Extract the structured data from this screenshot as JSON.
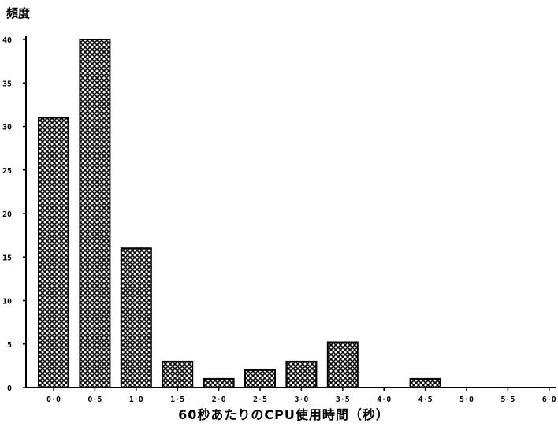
{
  "chart_data": {
    "type": "bar",
    "title": "",
    "ylabel": "頻度",
    "xlabel": "60秒あたりのCPU使用時間（秒）",
    "categories": [
      "0.0",
      "0.5",
      "1.0",
      "1.5",
      "2.0",
      "2.5",
      "3.0",
      "3.5",
      "4.0",
      "4.5",
      "5.0",
      "5.5",
      "6.0"
    ],
    "tick_labels": [
      "0·0",
      "0·5",
      "1·0",
      "1·5",
      "2·0",
      "2·5",
      "3·0",
      "3·5",
      "4·0",
      "4·5",
      "5·0",
      "5·5",
      "6·0"
    ],
    "values": [
      31,
      40,
      16,
      3,
      1,
      2,
      3,
      5.2,
      0,
      1,
      0,
      0,
      0
    ],
    "ylim": [
      0,
      40
    ],
    "yticks": [
      0,
      5,
      10,
      15,
      20,
      25,
      30,
      35,
      40
    ],
    "grid": false,
    "bar_fill": "crosshatch",
    "colors": {
      "bar_stroke": "#000000",
      "hatch": "#000000",
      "background": "#ffffff"
    }
  }
}
